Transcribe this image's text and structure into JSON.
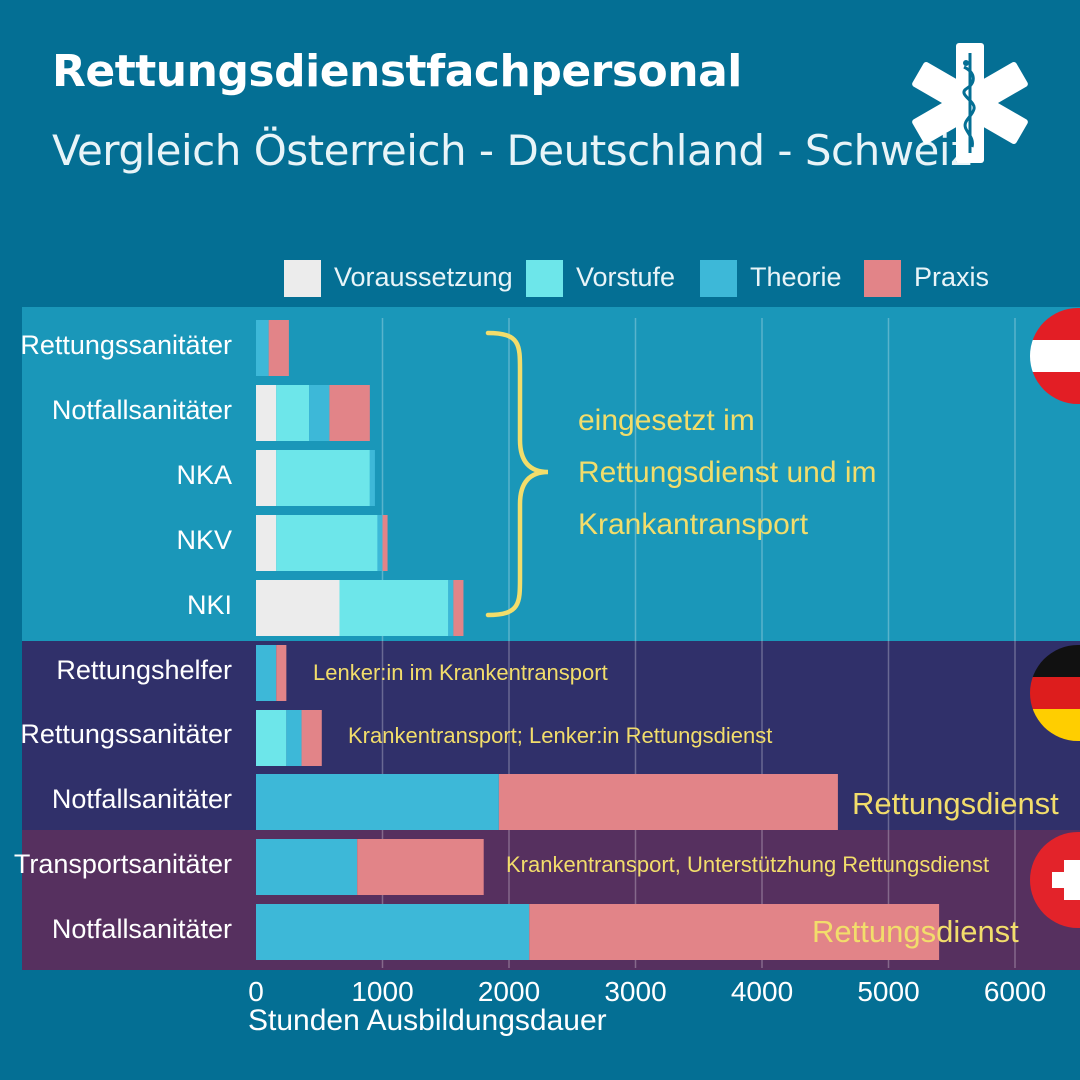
{
  "title": "Rettungsdienstfachpersonal",
  "subtitle": "Vergleich Österreich - Deutschland - Schweiz",
  "icon": "star-of-life-icon",
  "colors": {
    "background": "#046f94",
    "band_austria": "#1a97b9",
    "band_germany": "#30306a",
    "band_switzerland": "#56305f",
    "voraussetzung": "#ececec",
    "vorstufe": "#6de6ea",
    "theorie": "#3db8d8",
    "praxis": "#e28488",
    "annotation": "#f2dd6b",
    "grid": "#5cc2dc"
  },
  "legend": [
    {
      "label": "Voraussetzung",
      "color": "#ececec"
    },
    {
      "label": "Vorstufe",
      "color": "#6de6ea"
    },
    {
      "label": "Theorie",
      "color": "#3db8d8"
    },
    {
      "label": "Praxis",
      "color": "#e28488"
    }
  ],
  "annotations": {
    "austria_line1": "eingesetzt im",
    "austria_line2": "Rettungsdienst und im",
    "austria_line3": "Krankantransport",
    "de_rettungshelfer": "Lenker:in im Krankentransport",
    "de_rettungssanitaeter": "Krankentransport; Lenker:in Rettungsdienst",
    "de_notfallsanitaeter": "Rettungsdienst",
    "ch_transportsanitaeter": "Krankentransport, Unterstützhung Rettungsdienst",
    "ch_notfallsanitaeter": "Rettungsdienst"
  },
  "chart_data": {
    "type": "bar",
    "orientation": "horizontal",
    "stacked": true,
    "title": "Rettungsdienstfachpersonal",
    "subtitle": "Vergleich Österreich - Deutschland - Schweiz",
    "xlabel": "Stunden Ausbildungsdauer",
    "xlim": [
      0,
      6400
    ],
    "xticks": [
      0,
      1000,
      2000,
      3000,
      4000,
      5000,
      6000
    ],
    "grid": true,
    "legend_position": "top",
    "categories": [
      "Rettungssanitäter",
      "Notfallsanitäter",
      "NKA",
      "NKV",
      "NKI",
      "Rettungshelfer",
      "Rettungssanitäter",
      "Notfallsanitäter",
      "Transportsanitäter",
      "Notfallsanitäter"
    ],
    "groups": [
      {
        "country": "Österreich",
        "flag": "austria-flag-icon",
        "rows": [
          0,
          1,
          2,
          3,
          4
        ]
      },
      {
        "country": "Deutschland",
        "flag": "germany-flag-icon",
        "rows": [
          5,
          6,
          7
        ]
      },
      {
        "country": "Schweiz",
        "flag": "switzerland-flag-icon",
        "rows": [
          8,
          9
        ]
      }
    ],
    "series": [
      {
        "name": "Voraussetzung",
        "values": [
          0,
          160,
          160,
          160,
          660,
          0,
          0,
          0,
          0,
          0
        ]
      },
      {
        "name": "Vorstufe",
        "values": [
          0,
          260,
          740,
          800,
          860,
          0,
          240,
          0,
          0,
          0
        ]
      },
      {
        "name": "Theorie",
        "values": [
          100,
          160,
          40,
          40,
          40,
          160,
          120,
          1920,
          800,
          2160
        ]
      },
      {
        "name": "Praxis",
        "values": [
          160,
          320,
          0,
          40,
          80,
          80,
          160,
          2680,
          1000,
          3240
        ]
      }
    ]
  }
}
